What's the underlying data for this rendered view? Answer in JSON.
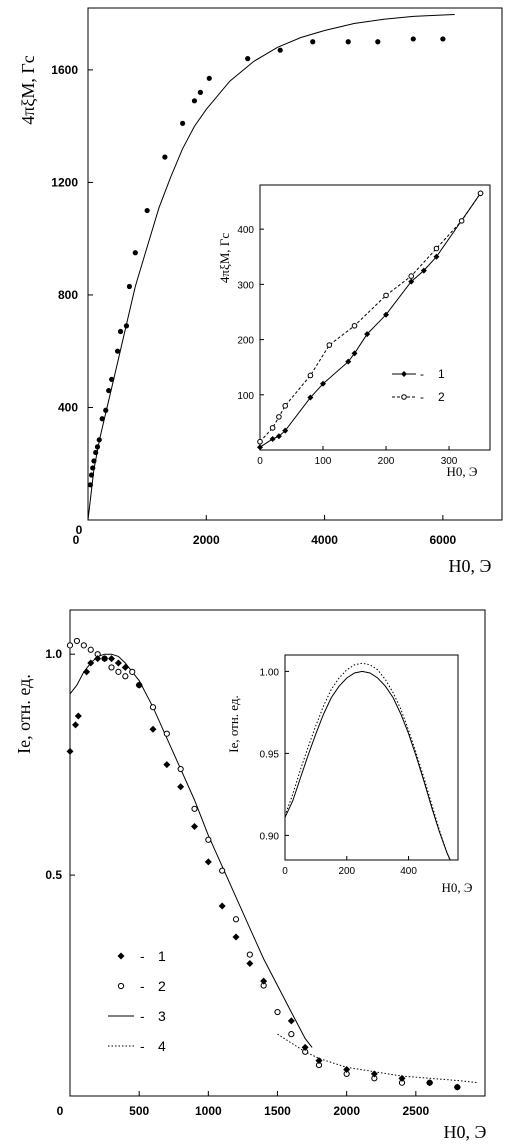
{
  "chart_data": [
    {
      "type": "scatter",
      "ylabel": "4πξM, Гс",
      "xlabel": "H0, Э",
      "xlim": [
        0,
        7000
      ],
      "ylim": [
        0,
        1820
      ],
      "xticks": [
        "0",
        "2000",
        "4000",
        "6000"
      ],
      "yticks": [
        "400",
        "800",
        "1200",
        "1600"
      ],
      "series": [
        {
          "kind": "points",
          "x": [
            40,
            60,
            80,
            100,
            130,
            160,
            190,
            240,
            300,
            350,
            400,
            500,
            550,
            650,
            700,
            800,
            1000,
            1300,
            1600,
            1800,
            1900,
            2050,
            2700,
            3250,
            3800,
            4400,
            4900,
            5500,
            6000
          ],
          "y": [
            125,
            160,
            185,
            210,
            240,
            260,
            285,
            360,
            390,
            460,
            500,
            600,
            670,
            690,
            830,
            950,
            1100,
            1290,
            1410,
            1490,
            1520,
            1570,
            1640,
            1670,
            1700,
            1700,
            1700,
            1710,
            1710
          ]
        },
        {
          "kind": "line",
          "x": [
            0,
            100,
            200,
            300,
            400,
            500,
            600,
            700,
            800,
            1000,
            1200,
            1400,
            1600,
            1800,
            2000,
            2400,
            2800,
            3200,
            3600,
            4000,
            4500,
            5000,
            5500,
            6000,
            6200
          ],
          "y": [
            0,
            180,
            290,
            380,
            470,
            560,
            650,
            740,
            830,
            970,
            1110,
            1220,
            1320,
            1400,
            1460,
            1560,
            1630,
            1680,
            1715,
            1740,
            1765,
            1780,
            1790,
            1795,
            1797
          ]
        }
      ],
      "inset": {
        "type": "line",
        "ylabel": "4πξM, Гс",
        "xlabel": "H0, Э",
        "xlim": [
          0,
          365
        ],
        "ylim": [
          0,
          480
        ],
        "xticks": [
          "0",
          "100",
          "200",
          "300"
        ],
        "yticks": [
          "100",
          "200",
          "300",
          "400"
        ],
        "series": [
          {
            "name": "1",
            "x": [
              0,
              20,
              30,
              40,
              80,
              100,
              140,
              150,
              170,
              200,
              240,
              260,
              280,
              350
            ],
            "y": [
              5,
              20,
              25,
              35,
              95,
              120,
              160,
              175,
              210,
              245,
              305,
              325,
              350,
              465
            ]
          },
          {
            "name": "2",
            "x": [
              0,
              20,
              30,
              40,
              80,
              110,
              150,
              200,
              240,
              280,
              320,
              350
            ],
            "y": [
              15,
              40,
              60,
              80,
              135,
              190,
              225,
              280,
              315,
              365,
              415,
              465
            ]
          }
        ],
        "legend": [
          "1",
          "2"
        ],
        "legend_placement": "middle-right"
      }
    },
    {
      "type": "scatter",
      "ylabel": "Ie, отн. ед.",
      "xlabel": "H0, Э",
      "xlim": [
        0,
        3000
      ],
      "ylim": [
        0,
        1.1
      ],
      "xticks": [
        "0",
        "500",
        "1000",
        "1500",
        "2000",
        "2500"
      ],
      "yticks": [
        "0.5",
        "1.0"
      ],
      "series": [
        {
          "name": "1",
          "kind": "filled-points",
          "x": [
            0,
            40,
            60,
            120,
            150,
            200,
            250,
            300,
            350,
            400,
            500,
            600,
            700,
            800,
            900,
            1000,
            1100,
            1200,
            1300,
            1400,
            1600,
            1700,
            1800,
            2000,
            2200,
            2400,
            2600,
            2800
          ],
          "y": [
            0.78,
            0.84,
            0.86,
            0.96,
            0.98,
            0.99,
            0.99,
            0.99,
            0.98,
            0.97,
            0.93,
            0.83,
            0.75,
            0.7,
            0.61,
            0.53,
            0.43,
            0.36,
            0.3,
            0.26,
            0.17,
            0.11,
            0.08,
            0.06,
            0.05,
            0.04,
            0.03,
            0.02
          ]
        },
        {
          "name": "2",
          "kind": "open-points",
          "x": [
            0,
            50,
            100,
            150,
            200,
            250,
            300,
            350,
            400,
            450,
            500,
            600,
            700,
            800,
            900,
            1000,
            1100,
            1200,
            1300,
            1400,
            1500,
            1600,
            1700,
            1800,
            2000,
            2200,
            2400,
            2600,
            2800
          ],
          "y": [
            1.02,
            1.03,
            1.02,
            1.01,
            1.0,
            0.99,
            0.97,
            0.96,
            0.95,
            0.96,
            0.93,
            0.88,
            0.82,
            0.74,
            0.65,
            0.58,
            0.51,
            0.4,
            0.32,
            0.25,
            0.19,
            0.14,
            0.1,
            0.07,
            0.05,
            0.04,
            0.03,
            0.03,
            0.02
          ]
        },
        {
          "name": "3",
          "kind": "solid-line",
          "x": [
            0,
            50,
            100,
            150,
            200,
            250,
            300,
            350,
            400,
            500,
            600,
            700,
            800,
            900,
            1000,
            1100,
            1200,
            1300,
            1400,
            1500,
            1600,
            1700,
            1750
          ],
          "y": [
            0.91,
            0.93,
            0.96,
            0.98,
            0.995,
            1.0,
            1.0,
            0.995,
            0.98,
            0.94,
            0.88,
            0.81,
            0.74,
            0.67,
            0.59,
            0.52,
            0.45,
            0.38,
            0.31,
            0.25,
            0.19,
            0.13,
            0.11
          ]
        },
        {
          "name": "4",
          "kind": "dotted-line",
          "x": [
            1500,
            1600,
            1700,
            1800,
            1900,
            2000,
            2200,
            2400,
            2600,
            2800,
            2950
          ],
          "y": [
            0.14,
            0.12,
            0.1,
            0.085,
            0.075,
            0.065,
            0.055,
            0.045,
            0.04,
            0.035,
            0.03
          ]
        }
      ],
      "legend": [
        "1",
        "2",
        "3",
        "4"
      ],
      "legend_placement": "bottom-left",
      "inset": {
        "type": "line",
        "ylabel": "Ie, отн. ед.",
        "xlabel": "H0, Э",
        "xlim": [
          0,
          560
        ],
        "ylim": [
          0.885,
          1.01
        ],
        "xticks": [
          "0",
          "200",
          "400"
        ],
        "yticks": [
          "0.90",
          "0.95",
          "1.00"
        ],
        "series": [
          {
            "name": "solid",
            "x": [
              0,
              25,
              50,
              75,
              100,
              125,
              150,
              175,
              200,
              225,
              250,
              275,
              300,
              325,
              350,
              375,
              400,
              425,
              450,
              475,
              500,
              525,
              545
            ],
            "y": [
              0.911,
              0.921,
              0.935,
              0.949,
              0.962,
              0.974,
              0.984,
              0.991,
              0.996,
              0.999,
              1.0,
              0.999,
              0.996,
              0.991,
              0.984,
              0.974,
              0.962,
              0.948,
              0.933,
              0.917,
              0.902,
              0.889,
              0.881
            ]
          },
          {
            "name": "dotted",
            "x": [
              0,
              25,
              50,
              75,
              100,
              125,
              150,
              175,
              200,
              225,
              250,
              275,
              300,
              325,
              350,
              375,
              400,
              425,
              450,
              475,
              500,
              525,
              545
            ],
            "y": [
              0.912,
              0.925,
              0.94,
              0.954,
              0.967,
              0.979,
              0.989,
              0.996,
              1.001,
              1.004,
              1.005,
              1.004,
              1.001,
              0.995,
              0.987,
              0.977,
              0.964,
              0.95,
              0.935,
              0.919,
              0.903,
              0.889,
              0.88
            ]
          }
        ]
      }
    }
  ]
}
